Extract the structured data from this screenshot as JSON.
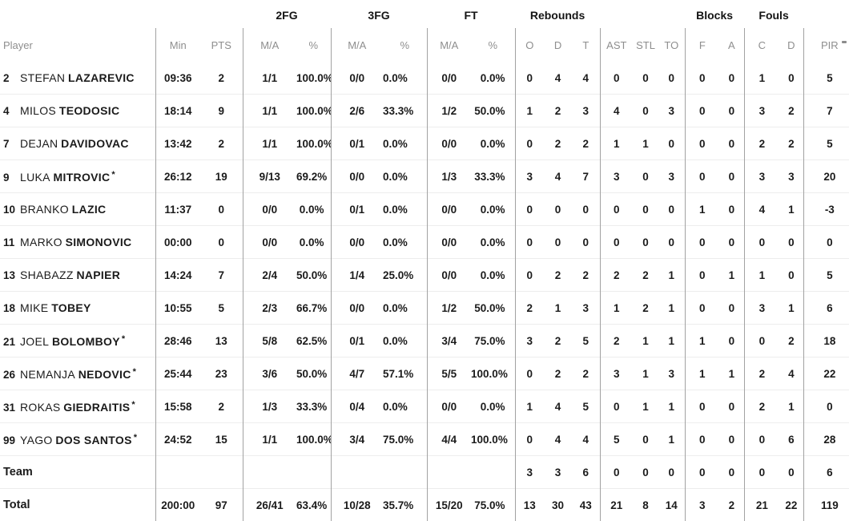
{
  "table": {
    "starter_mark": "*",
    "group_labels": {
      "fg2": "2FG",
      "fg3": "3FG",
      "ft": "FT",
      "rebounds": "Rebounds",
      "blocks": "Blocks",
      "fouls": "Fouls"
    },
    "columns": [
      "Player",
      "Min",
      "PTS",
      "M/A",
      "%",
      "M/A",
      "%",
      "M/A",
      "%",
      "O",
      "D",
      "T",
      "AST",
      "STL",
      "TO",
      "F",
      "A",
      "C",
      "D",
      "PIR"
    ],
    "rows": [
      {
        "type": "player",
        "no": "2",
        "first": "STEFAN",
        "last": "LAZAREVIC",
        "starter": false,
        "stats": [
          "09:36",
          "2",
          "1/1",
          "100.0%",
          "0/0",
          "0.0%",
          "0/0",
          "0.0%",
          "0",
          "4",
          "4",
          "0",
          "0",
          "0",
          "0",
          "0",
          "1",
          "0",
          "5"
        ]
      },
      {
        "type": "player",
        "no": "4",
        "first": "MILOS",
        "last": "TEODOSIC",
        "starter": false,
        "stats": [
          "18:14",
          "9",
          "1/1",
          "100.0%",
          "2/6",
          "33.3%",
          "1/2",
          "50.0%",
          "1",
          "2",
          "3",
          "4",
          "0",
          "3",
          "0",
          "0",
          "3",
          "2",
          "7"
        ]
      },
      {
        "type": "player",
        "no": "7",
        "first": "DEJAN",
        "last": "DAVIDOVAC",
        "starter": false,
        "stats": [
          "13:42",
          "2",
          "1/1",
          "100.0%",
          "0/1",
          "0.0%",
          "0/0",
          "0.0%",
          "0",
          "2",
          "2",
          "1",
          "1",
          "0",
          "0",
          "0",
          "2",
          "2",
          "5"
        ]
      },
      {
        "type": "player",
        "no": "9",
        "first": "LUKA",
        "last": "MITROVIC",
        "starter": true,
        "stats": [
          "26:12",
          "19",
          "9/13",
          "69.2%",
          "0/0",
          "0.0%",
          "1/3",
          "33.3%",
          "3",
          "4",
          "7",
          "3",
          "0",
          "3",
          "0",
          "0",
          "3",
          "3",
          "20"
        ]
      },
      {
        "type": "player",
        "no": "10",
        "first": "BRANKO",
        "last": "LAZIC",
        "starter": false,
        "stats": [
          "11:37",
          "0",
          "0/0",
          "0.0%",
          "0/1",
          "0.0%",
          "0/0",
          "0.0%",
          "0",
          "0",
          "0",
          "0",
          "0",
          "0",
          "1",
          "0",
          "4",
          "1",
          "-3"
        ]
      },
      {
        "type": "player",
        "no": "11",
        "first": "MARKO",
        "last": "SIMONOVIC",
        "starter": false,
        "stats": [
          "00:00",
          "0",
          "0/0",
          "0.0%",
          "0/0",
          "0.0%",
          "0/0",
          "0.0%",
          "0",
          "0",
          "0",
          "0",
          "0",
          "0",
          "0",
          "0",
          "0",
          "0",
          "0"
        ]
      },
      {
        "type": "player",
        "no": "13",
        "first": "SHABAZZ",
        "last": "NAPIER",
        "starter": false,
        "stats": [
          "14:24",
          "7",
          "2/4",
          "50.0%",
          "1/4",
          "25.0%",
          "0/0",
          "0.0%",
          "0",
          "2",
          "2",
          "2",
          "2",
          "1",
          "0",
          "1",
          "1",
          "0",
          "5"
        ]
      },
      {
        "type": "player",
        "no": "18",
        "first": "MIKE",
        "last": "TOBEY",
        "starter": false,
        "stats": [
          "10:55",
          "5",
          "2/3",
          "66.7%",
          "0/0",
          "0.0%",
          "1/2",
          "50.0%",
          "2",
          "1",
          "3",
          "1",
          "2",
          "1",
          "0",
          "0",
          "3",
          "1",
          "6"
        ]
      },
      {
        "type": "player",
        "no": "21",
        "first": "JOEL",
        "last": "BOLOMBOY",
        "starter": true,
        "stats": [
          "28:46",
          "13",
          "5/8",
          "62.5%",
          "0/1",
          "0.0%",
          "3/4",
          "75.0%",
          "3",
          "2",
          "5",
          "2",
          "1",
          "1",
          "1",
          "0",
          "0",
          "2",
          "18"
        ]
      },
      {
        "type": "player",
        "no": "26",
        "first": "NEMANJA",
        "last": "NEDOVIC",
        "starter": true,
        "stats": [
          "25:44",
          "23",
          "3/6",
          "50.0%",
          "4/7",
          "57.1%",
          "5/5",
          "100.0%",
          "0",
          "2",
          "2",
          "3",
          "1",
          "3",
          "1",
          "1",
          "2",
          "4",
          "22"
        ]
      },
      {
        "type": "player",
        "no": "31",
        "first": "ROKAS",
        "last": "GIEDRAITIS",
        "starter": true,
        "stats": [
          "15:58",
          "2",
          "1/3",
          "33.3%",
          "0/4",
          "0.0%",
          "0/0",
          "0.0%",
          "1",
          "4",
          "5",
          "0",
          "1",
          "1",
          "0",
          "0",
          "2",
          "1",
          "0"
        ]
      },
      {
        "type": "player",
        "no": "99",
        "first": "YAGO",
        "last": "DOS SANTOS",
        "starter": true,
        "stats": [
          "24:52",
          "15",
          "1/1",
          "100.0%",
          "3/4",
          "75.0%",
          "4/4",
          "100.0%",
          "0",
          "4",
          "4",
          "5",
          "0",
          "1",
          "0",
          "0",
          "0",
          "6",
          "28"
        ]
      },
      {
        "type": "team",
        "label": "Team",
        "stats": [
          "",
          "",
          "",
          "",
          "",
          "",
          "",
          "",
          "3",
          "3",
          "6",
          "0",
          "0",
          "0",
          "0",
          "0",
          "0",
          "0",
          "6"
        ]
      },
      {
        "type": "total",
        "label": "Total",
        "stats": [
          "200:00",
          "97",
          "26/41",
          "63.4%",
          "10/28",
          "35.7%",
          "15/20",
          "75.0%",
          "13",
          "30",
          "43",
          "21",
          "8",
          "14",
          "3",
          "2",
          "21",
          "22",
          "119"
        ]
      }
    ]
  }
}
